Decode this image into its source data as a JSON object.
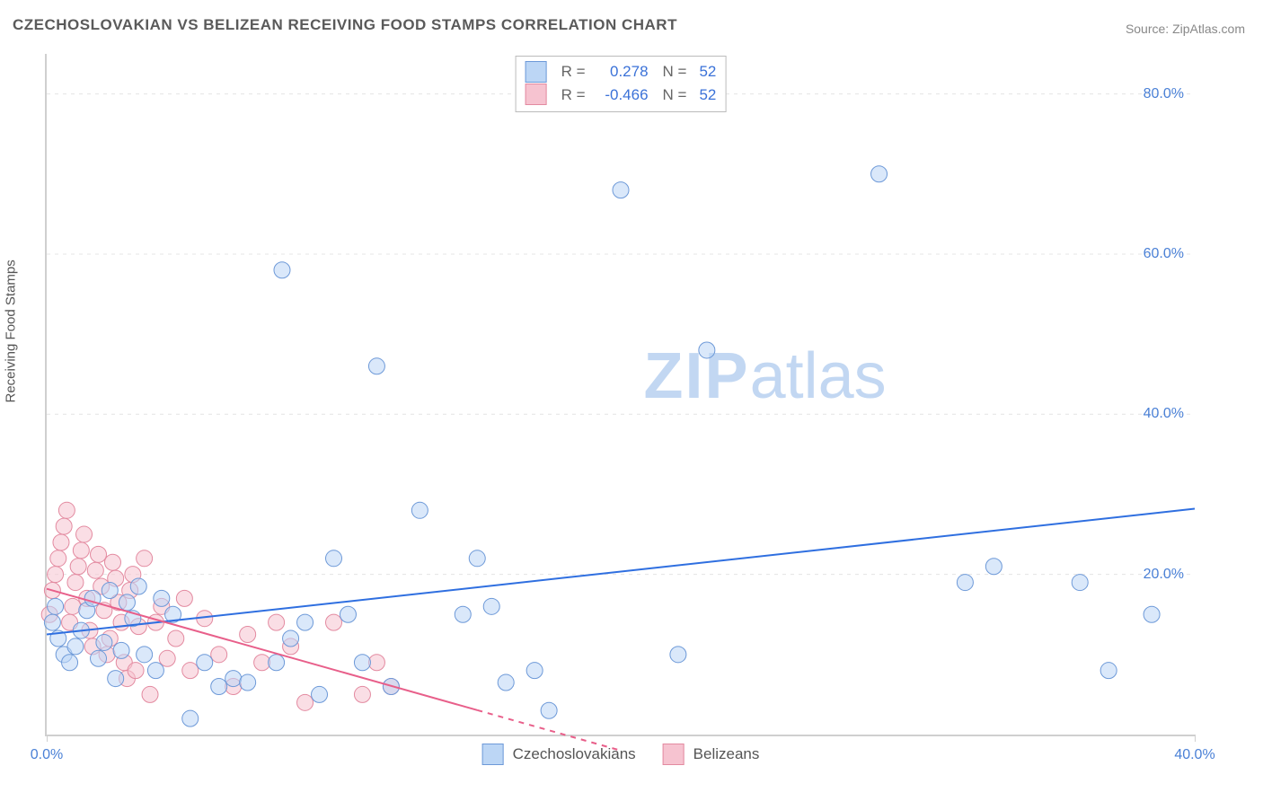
{
  "title": "CZECHOSLOVAKIAN VS BELIZEAN RECEIVING FOOD STAMPS CORRELATION CHART",
  "source": "Source: ZipAtlas.com",
  "y_axis_title": "Receiving Food Stamps",
  "watermark_zip": "ZIP",
  "watermark_atlas": "atlas",
  "chart": {
    "type": "scatter-with-trend",
    "xlim": [
      0,
      40
    ],
    "ylim": [
      0,
      85
    ],
    "y_ticks": [
      20,
      40,
      60,
      80
    ],
    "y_tick_labels": [
      "20.0%",
      "40.0%",
      "60.0%",
      "80.0%"
    ],
    "x_ticks": [
      0,
      40
    ],
    "x_tick_labels": [
      "0.0%",
      "40.0%"
    ],
    "background_color": "#ffffff",
    "grid_color": "#e4e4e4",
    "axis_color": "#cfcfcf",
    "tick_label_color": "#4a80d6",
    "marker_radius": 9,
    "marker_opacity": 0.55,
    "series": [
      {
        "name": "Czechoslovakians",
        "color_fill": "#bcd6f5",
        "color_stroke": "#6d99d8",
        "swatch_fill": "#bcd6f5",
        "swatch_border": "#6d99d8",
        "R": "0.278",
        "N": "52",
        "trend": {
          "x1": 0,
          "y1": 12.5,
          "x2": 40,
          "y2": 28.2,
          "solid_until_x": 40,
          "color": "#2f6fe0",
          "width": 2
        },
        "points": [
          [
            0.2,
            14
          ],
          [
            0.3,
            16
          ],
          [
            0.4,
            12
          ],
          [
            0.6,
            10
          ],
          [
            0.8,
            9
          ],
          [
            1.0,
            11
          ],
          [
            1.2,
            13
          ],
          [
            1.4,
            15.5
          ],
          [
            1.6,
            17
          ],
          [
            1.8,
            9.5
          ],
          [
            2.0,
            11.5
          ],
          [
            2.2,
            18
          ],
          [
            2.4,
            7
          ],
          [
            2.6,
            10.5
          ],
          [
            2.8,
            16.5
          ],
          [
            3.0,
            14.5
          ],
          [
            3.2,
            18.5
          ],
          [
            3.4,
            10
          ],
          [
            3.8,
            8
          ],
          [
            4.0,
            17
          ],
          [
            4.4,
            15
          ],
          [
            5.0,
            2
          ],
          [
            5.5,
            9
          ],
          [
            6.0,
            6
          ],
          [
            6.5,
            7
          ],
          [
            7.0,
            6.5
          ],
          [
            8.0,
            9
          ],
          [
            8.2,
            58
          ],
          [
            8.5,
            12
          ],
          [
            9.0,
            14
          ],
          [
            9.5,
            5
          ],
          [
            10.0,
            22
          ],
          [
            10.5,
            15
          ],
          [
            11.0,
            9
          ],
          [
            11.5,
            46
          ],
          [
            12.0,
            6
          ],
          [
            13.0,
            28
          ],
          [
            14.5,
            15
          ],
          [
            15.0,
            22
          ],
          [
            15.5,
            16
          ],
          [
            16.0,
            6.5
          ],
          [
            17.0,
            8
          ],
          [
            17.5,
            3
          ],
          [
            20.0,
            68
          ],
          [
            22.0,
            10
          ],
          [
            23.0,
            48
          ],
          [
            29.0,
            70
          ],
          [
            32.0,
            19
          ],
          [
            33.0,
            21
          ],
          [
            36.0,
            19
          ],
          [
            37.0,
            8
          ],
          [
            38.5,
            15
          ]
        ]
      },
      {
        "name": "Belizeans",
        "color_fill": "#f6c3d0",
        "color_stroke": "#e38aa0",
        "swatch_fill": "#f6c3d0",
        "swatch_border": "#e38aa0",
        "R": "-0.466",
        "N": "52",
        "trend": {
          "x1": 0,
          "y1": 18.2,
          "x2": 20,
          "y2": -2,
          "solid_until_x": 15,
          "color": "#e85f8a",
          "width": 2
        },
        "points": [
          [
            0.1,
            15
          ],
          [
            0.2,
            18
          ],
          [
            0.3,
            20
          ],
          [
            0.4,
            22
          ],
          [
            0.5,
            24
          ],
          [
            0.6,
            26
          ],
          [
            0.7,
            28
          ],
          [
            0.8,
            14
          ],
          [
            0.9,
            16
          ],
          [
            1.0,
            19
          ],
          [
            1.1,
            21
          ],
          [
            1.2,
            23
          ],
          [
            1.3,
            25
          ],
          [
            1.4,
            17
          ],
          [
            1.5,
            13
          ],
          [
            1.6,
            11
          ],
          [
            1.7,
            20.5
          ],
          [
            1.8,
            22.5
          ],
          [
            1.9,
            18.5
          ],
          [
            2.0,
            15.5
          ],
          [
            2.1,
            10
          ],
          [
            2.2,
            12
          ],
          [
            2.3,
            21.5
          ],
          [
            2.4,
            19.5
          ],
          [
            2.5,
            16.5
          ],
          [
            2.6,
            14
          ],
          [
            2.7,
            9
          ],
          [
            2.8,
            7
          ],
          [
            2.9,
            18
          ],
          [
            3.0,
            20
          ],
          [
            3.1,
            8
          ],
          [
            3.2,
            13.5
          ],
          [
            3.4,
            22
          ],
          [
            3.6,
            5
          ],
          [
            3.8,
            14
          ],
          [
            4.0,
            16
          ],
          [
            4.2,
            9.5
          ],
          [
            4.5,
            12
          ],
          [
            4.8,
            17
          ],
          [
            5.0,
            8
          ],
          [
            5.5,
            14.5
          ],
          [
            6.0,
            10
          ],
          [
            6.5,
            6
          ],
          [
            7.0,
            12.5
          ],
          [
            7.5,
            9
          ],
          [
            8.0,
            14
          ],
          [
            8.5,
            11
          ],
          [
            9.0,
            4
          ],
          [
            10.0,
            14
          ],
          [
            11.0,
            5
          ],
          [
            11.5,
            9
          ],
          [
            12.0,
            6
          ]
        ]
      }
    ]
  },
  "stats_labels": {
    "R": "R =",
    "N": "N ="
  },
  "legend_labels": {
    "s1": "Czechoslovakians",
    "s2": "Belizeans"
  }
}
